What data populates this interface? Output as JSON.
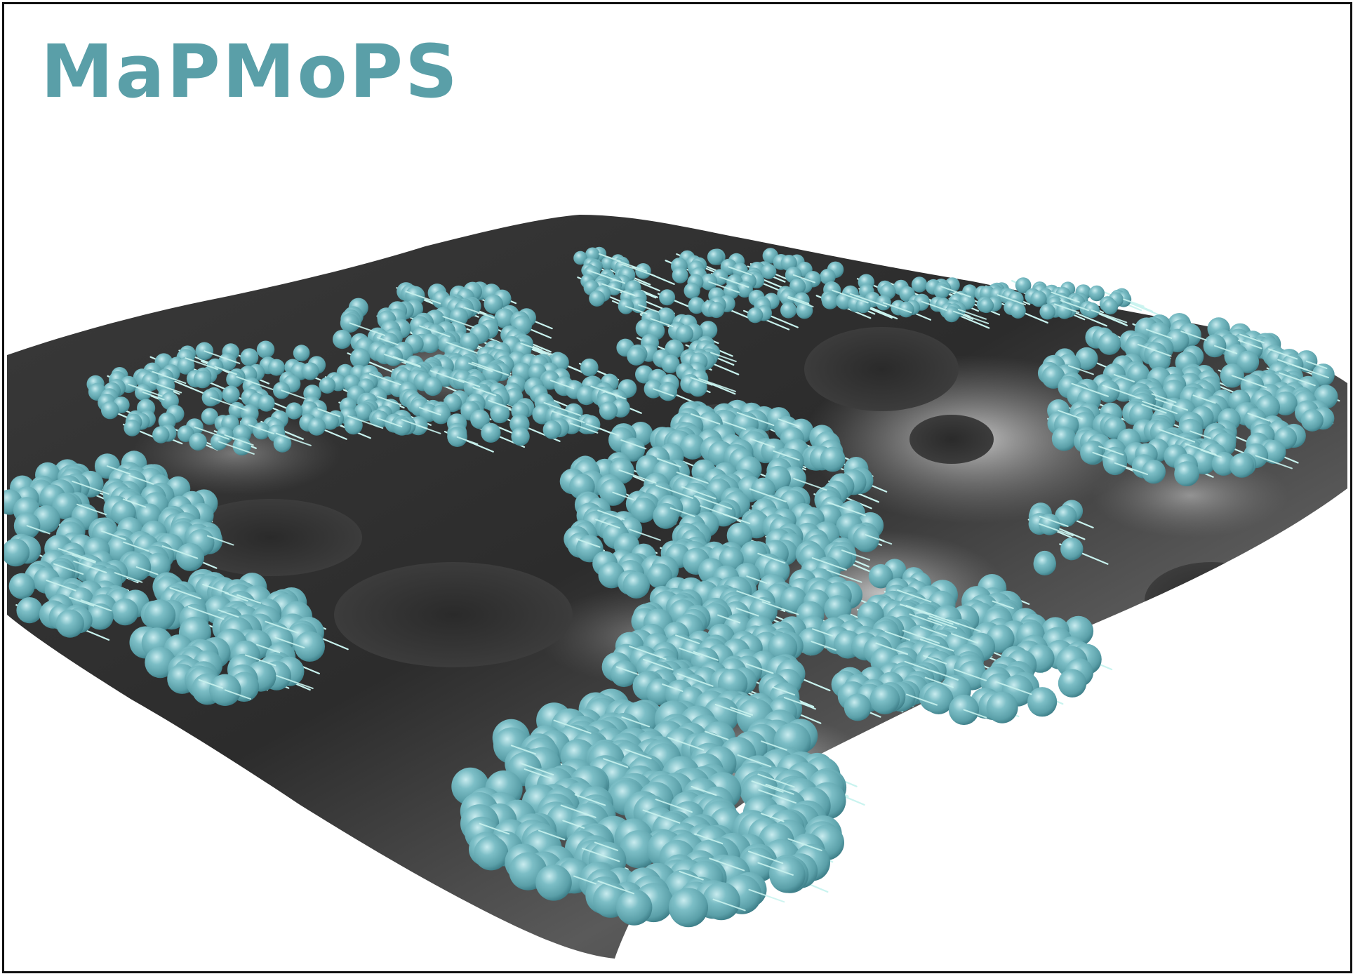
{
  "title": "MaPMoPS",
  "colors": {
    "title": "#5a9fa8",
    "sphere": "#6fb2bb",
    "sphere_highlight": "#c9ecef",
    "sphere_shadow": "#3e7f89",
    "arrow": "#c9f3ef",
    "terrain_dark": "#2f2f2f",
    "terrain_light": "#9c9c9c",
    "frame": "#111111"
  },
  "scene": {
    "description_icon": "particle-terrain-render",
    "elements": [
      "terrain-surface",
      "particle-spheres",
      "velocity-arrows"
    ]
  }
}
